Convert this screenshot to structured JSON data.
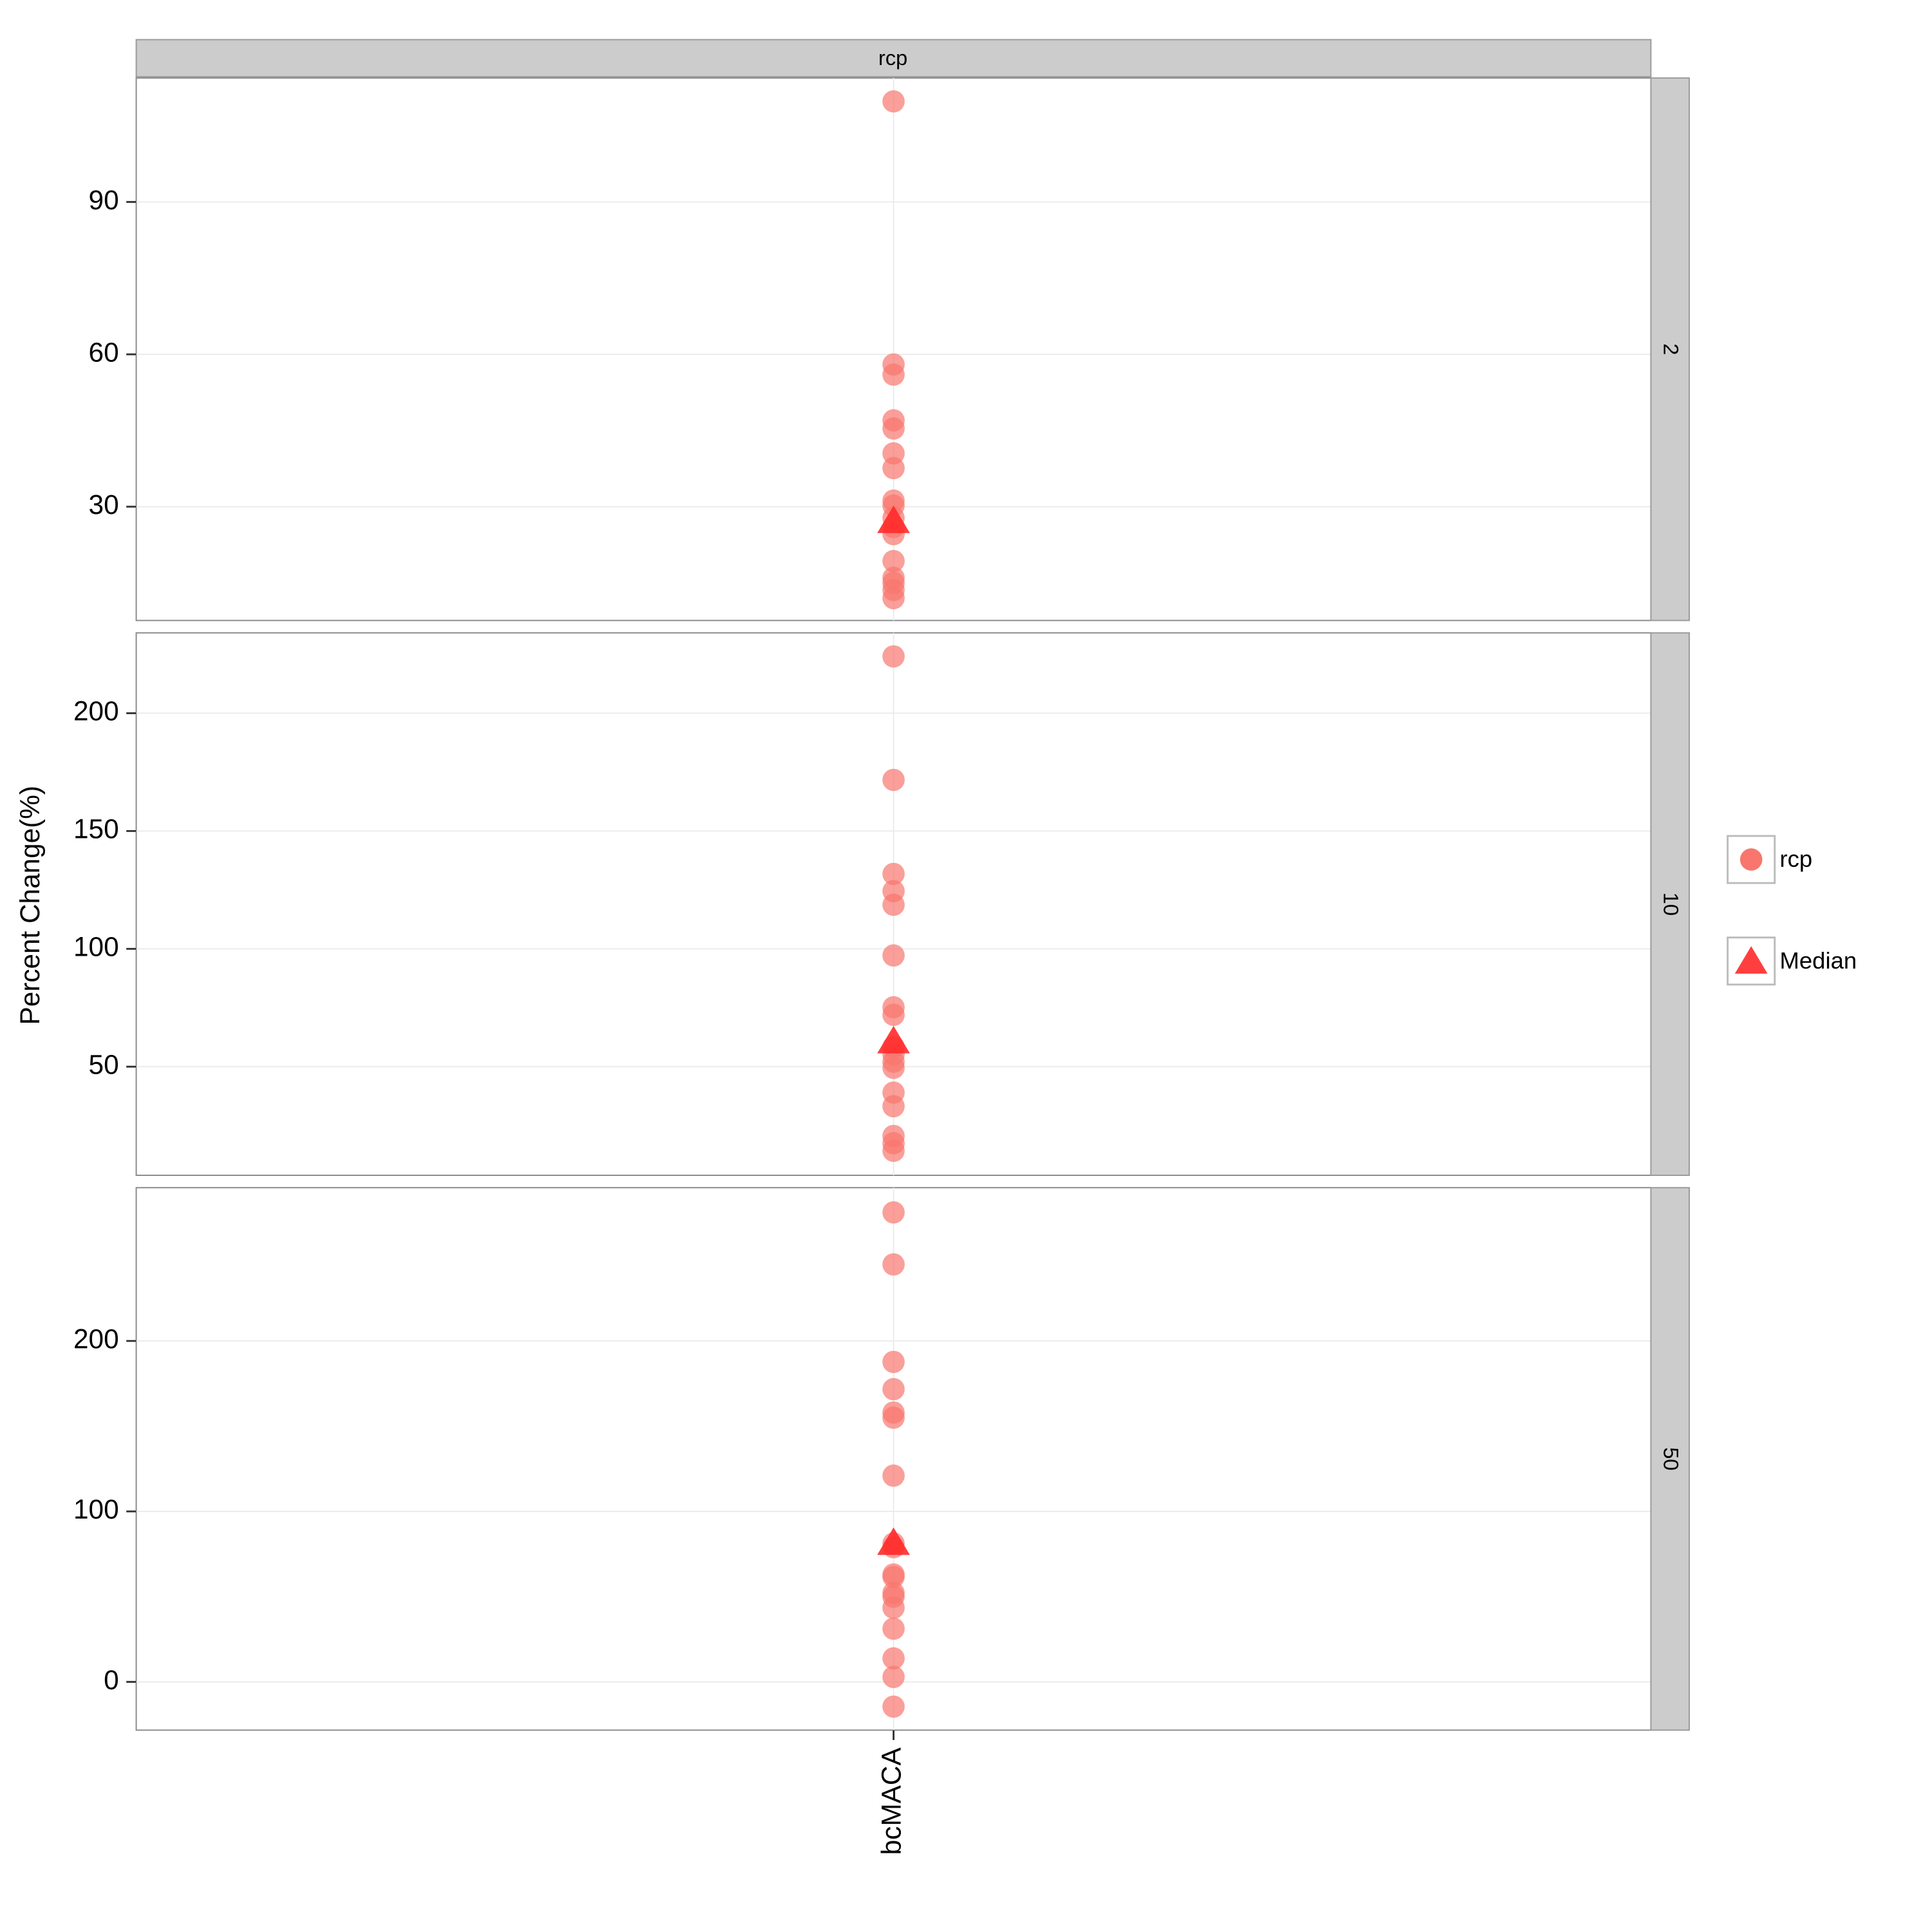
{
  "chart_data": {
    "type": "scatter",
    "ylabel": "Percent Change(%)",
    "categories": [
      "bcMACA"
    ],
    "strip": "rcp",
    "grid": true,
    "panels": [
      {
        "label": "2",
        "ylim": [
          7.6,
          114.4
        ],
        "yticks": [
          30,
          60,
          90
        ],
        "series": [
          {
            "name": "rcp",
            "color": "#F8766D",
            "marker": "circle",
            "values": [
              109.8,
              58,
              56,
              47,
              45.4,
              40.5,
              37.6,
              31.2,
              30.2,
              27.8,
              26,
              24.6,
              19.3,
              16,
              15,
              13.6,
              12
            ]
          },
          {
            "name": "Median",
            "color": "#FF2A2A",
            "marker": "triangle",
            "values": [
              27.3
            ]
          }
        ]
      },
      {
        "label": "10",
        "ylim": [
          3.9,
          234.1
        ],
        "yticks": [
          50,
          100,
          150,
          200
        ],
        "series": [
          {
            "name": "rcp",
            "color": "#F8766D",
            "marker": "circle",
            "values": [
              224.1,
              171.7,
              131.8,
              124.5,
              118.7,
              97.2,
              75.2,
              72,
              58.4,
              55.2,
              52.1,
              49.5,
              39,
              33.2,
              20.6,
              17.5,
              14.3
            ]
          },
          {
            "name": "Median",
            "color": "#FF2A2A",
            "marker": "triangle",
            "values": [
              61
            ]
          }
        ]
      },
      {
        "label": "50",
        "ylim": [
          -28.3,
          289.9
        ],
        "yticks": [
          0,
          100,
          200
        ],
        "series": [
          {
            "name": "rcp",
            "color": "#F8766D",
            "marker": "circle",
            "values": [
              275.4,
              244.9,
              187.7,
              171.7,
              158,
              155,
              121,
              81.2,
              79,
              63,
              61.6,
              52.2,
              50,
              43.5,
              31.2,
              13.8,
              2.9,
              -14.5
            ]
          },
          {
            "name": "Median",
            "color": "#FF2A2A",
            "marker": "triangle",
            "values": [
              81.9
            ]
          }
        ]
      }
    ]
  }
}
